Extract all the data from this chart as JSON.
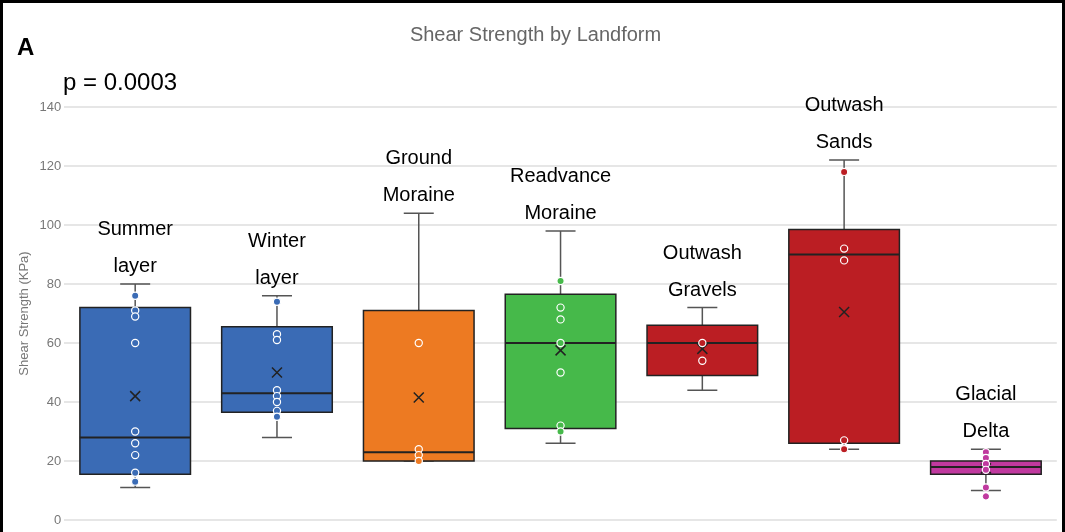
{
  "chart_data": {
    "type": "box",
    "title": "Shear Strength by Landform",
    "ylabel": "Shear Strength (KPa)",
    "annotations": [
      "A",
      "p = 0.0003"
    ],
    "categories": [
      "Summer layer",
      "Winter layer",
      "Ground Moraine",
      "Readvance Moraine",
      "Outwash Gravels",
      "Outwash Sands",
      "Glacial Delta"
    ],
    "colors": [
      "#3a6bb5",
      "#3a6bb5",
      "#ed7a22",
      "#46b94a",
      "#bb1e23",
      "#bb1e23",
      "#c0399f"
    ],
    "boxes": [
      {
        "low": 11,
        "q1": 15.5,
        "median": 28,
        "q3": 72,
        "high": 80,
        "mean": 42
      },
      {
        "low": 28,
        "q1": 36.5,
        "median": 43,
        "q3": 65.5,
        "high": 76,
        "mean": 50
      },
      {
        "low": 20,
        "q1": 20,
        "median": 23,
        "q3": 71,
        "high": 104,
        "mean": 41.5
      },
      {
        "low": 26,
        "q1": 31,
        "median": 60,
        "q3": 76.5,
        "high": 98,
        "mean": 57.5
      },
      {
        "low": 44,
        "q1": 49,
        "median": 60,
        "q3": 66,
        "high": 72,
        "mean": 58
      },
      {
        "low": 24,
        "q1": 26,
        "median": 90,
        "q3": 98.5,
        "high": 122,
        "mean": 70.5
      },
      {
        "low": 10,
        "q1": 15.5,
        "median": 18,
        "q3": 20,
        "high": 24,
        "mean": 17.5,
        "outliers": [
          8
        ]
      }
    ],
    "series": [
      {
        "type": "scatter",
        "x": [
          "Summer layer",
          "Summer layer",
          "Summer layer",
          "Summer layer",
          "Summer layer",
          "Summer layer",
          "Summer layer",
          "Summer layer",
          "Summer layer",
          "Winter layer",
          "Winter layer",
          "Winter layer",
          "Winter layer",
          "Winter layer",
          "Winter layer",
          "Winter layer",
          "Winter layer",
          "Ground Moraine",
          "Ground Moraine",
          "Ground Moraine",
          "Ground Moraine",
          "Readvance Moraine",
          "Readvance Moraine",
          "Readvance Moraine",
          "Readvance Moraine",
          "Readvance Moraine",
          "Readvance Moraine",
          "Readvance Moraine",
          "Outwash Gravels",
          "Outwash Gravels",
          "Outwash Sands",
          "Outwash Sands",
          "Outwash Sands",
          "Outwash Sands",
          "Outwash Sands",
          "Glacial Delta",
          "Glacial Delta",
          "Glacial Delta",
          "Glacial Delta",
          "Glacial Delta"
        ],
        "values": [
          76,
          71,
          69,
          60,
          30,
          26,
          22,
          16,
          13,
          74,
          63,
          61,
          44,
          42,
          40,
          37,
          35,
          60,
          24,
          22,
          20,
          81,
          72,
          68,
          60,
          50,
          32,
          30,
          60,
          54,
          118,
          92,
          88,
          27,
          24,
          23,
          21,
          19,
          17,
          11
        ],
        "colors": [
          "#3a6bb5",
          "#3a6bb5",
          "#3a6bb5",
          "#3a6bb5",
          "#3a6bb5",
          "#3a6bb5",
          "#3a6bb5",
          "#3a6bb5",
          "#3a6bb5",
          "#3a6bb5",
          "#3a6bb5",
          "#3a6bb5",
          "#3a6bb5",
          "#3a6bb5",
          "#3a6bb5",
          "#3a6bb5",
          "#3a6bb5",
          "#ed7a22",
          "#ed7a22",
          "#ed7a22",
          "#ed7a22",
          "#46b94a",
          "#46b94a",
          "#46b94a",
          "#46b94a",
          "#46b94a",
          "#46b94a",
          "#46b94a",
          "#bb1e23",
          "#bb1e23",
          "#bb1e23",
          "#bb1e23",
          "#bb1e23",
          "#bb1e23",
          "#bb1e23",
          "#c0399f",
          "#c0399f",
          "#c0399f",
          "#c0399f",
          "#c0399f"
        ]
      }
    ],
    "marker": "circle",
    "ylim": [
      0,
      140
    ],
    "yticks": [
      0,
      20,
      40,
      60,
      80,
      100,
      120,
      140
    ],
    "grid": "y",
    "legend": false
  }
}
